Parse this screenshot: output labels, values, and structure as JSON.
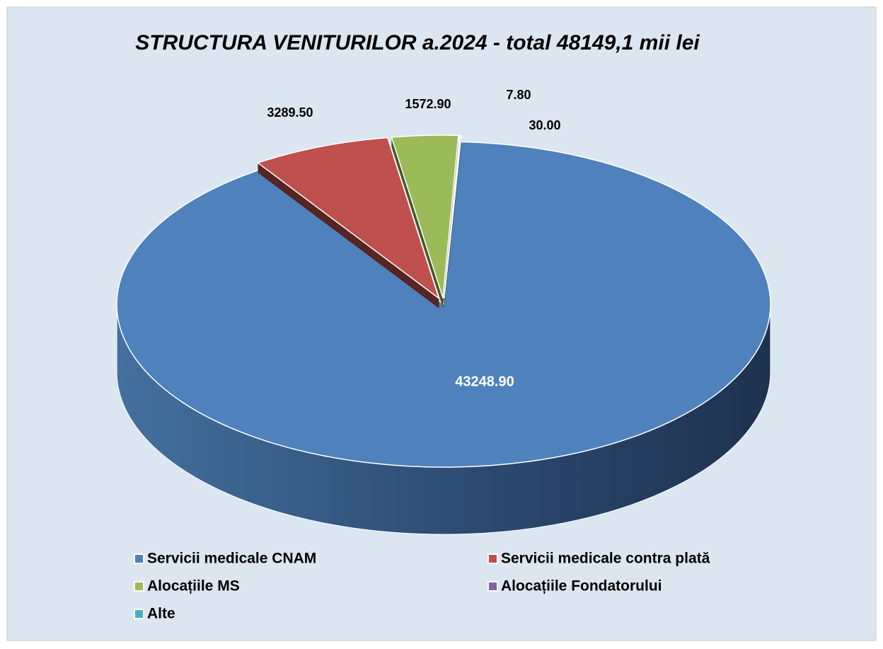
{
  "chart_data": {
    "type": "pie",
    "title": "STRUCTURA  VENITURILOR a.2024 - total 48149,1 mii lei",
    "categories": [
      "Servicii medicale CNAM",
      "Servicii medicale contra plată",
      "Alocațiile MS",
      "Alocațiile Fondatorului",
      "Alte"
    ],
    "values": [
      43248.9,
      3289.5,
      1572.9,
      7.8,
      30
    ],
    "value_labels": [
      "43248.90",
      "3289.50",
      "1572.90",
      "7.80",
      "30.00"
    ],
    "colors": [
      "#4f81bd",
      "#c0504d",
      "#9bbb59",
      "#8064a2",
      "#4bacc6"
    ],
    "legend": "bottom"
  }
}
